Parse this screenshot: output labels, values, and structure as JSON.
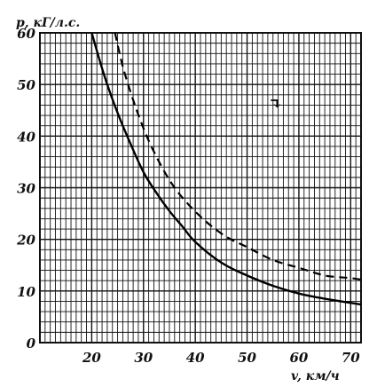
{
  "chart_data": {
    "type": "line",
    "ylabel": "p, кГ/л.с.",
    "xlabel": "v, км/ч",
    "xlim": [
      10,
      72
    ],
    "ylim": [
      0,
      60
    ],
    "xticks": [
      20,
      30,
      40,
      50,
      60,
      70
    ],
    "yticks": [
      0,
      10,
      20,
      30,
      40,
      50,
      60
    ],
    "grid": true,
    "annotation": "↴",
    "series": [
      {
        "style": "solid",
        "x": [
          20,
          22.5,
          25,
          27.5,
          30,
          32.5,
          35,
          37.5,
          40,
          45,
          50,
          55,
          60,
          65,
          70,
          72
        ],
        "y": [
          60,
          51.5,
          44.5,
          38.5,
          33,
          29,
          25.5,
          22.5,
          19.5,
          15.5,
          13,
          11,
          9.5,
          8.5,
          7.7,
          7.4
        ]
      },
      {
        "style": "dashed",
        "x": [
          24.5,
          26,
          28,
          30,
          32,
          35,
          38,
          42,
          46,
          50,
          55,
          60,
          65,
          70,
          72
        ],
        "y": [
          60,
          53.5,
          47,
          41.5,
          37,
          31.5,
          27.5,
          23.5,
          20.5,
          18.5,
          16,
          14.5,
          13,
          12.5,
          12.2
        ]
      }
    ]
  }
}
